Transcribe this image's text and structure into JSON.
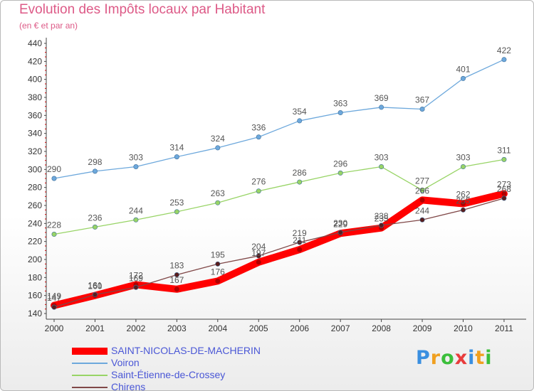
{
  "chart_data": {
    "type": "line",
    "title": "Evolution des Impôts locaux par Habitant",
    "subtitle": "(en € et par an)",
    "x": [
      "2000",
      "2001",
      "2002",
      "2003",
      "2004",
      "2005",
      "2006",
      "2007",
      "2008",
      "2009",
      "2010",
      "2011"
    ],
    "ylim": [
      140,
      440
    ],
    "yticks": [
      "140",
      "160",
      "180",
      "200",
      "220",
      "240",
      "260",
      "280",
      "300",
      "320",
      "340",
      "360",
      "380",
      "400",
      "420",
      "440"
    ],
    "grid": false,
    "legend": "bottom-left",
    "series": [
      {
        "name": "SAINT-NICOLAS-DE-MACHERIN",
        "color": "#ff0000",
        "values": [
          149,
          160,
          172,
          167,
          176,
          197,
          211,
          229,
          235,
          266,
          262,
          273
        ]
      },
      {
        "name": "Voiron",
        "color": "#6da8dc",
        "values": [
          290,
          298,
          303,
          314,
          324,
          336,
          354,
          363,
          369,
          367,
          401,
          422
        ]
      },
      {
        "name": "Saint-Étienne-de-Crossey",
        "color": "#98d466",
        "values": [
          228,
          236,
          244,
          253,
          263,
          276,
          286,
          296,
          303,
          277,
          303,
          311
        ]
      },
      {
        "name": "Chirens",
        "color": "#804848",
        "values": [
          147,
          161,
          169,
          183,
          195,
          204,
          219,
          230,
          238,
          244,
          255,
          268
        ]
      }
    ]
  },
  "logo": {
    "letters": [
      "P",
      "r",
      "o",
      "x",
      "i",
      "t",
      "i"
    ],
    "colors": [
      "#3a8fe0",
      "#f0a020",
      "#3bbf3b",
      "#e83c3c",
      "#3a8fe0",
      "#f0a020",
      "#3bbf3b"
    ]
  }
}
